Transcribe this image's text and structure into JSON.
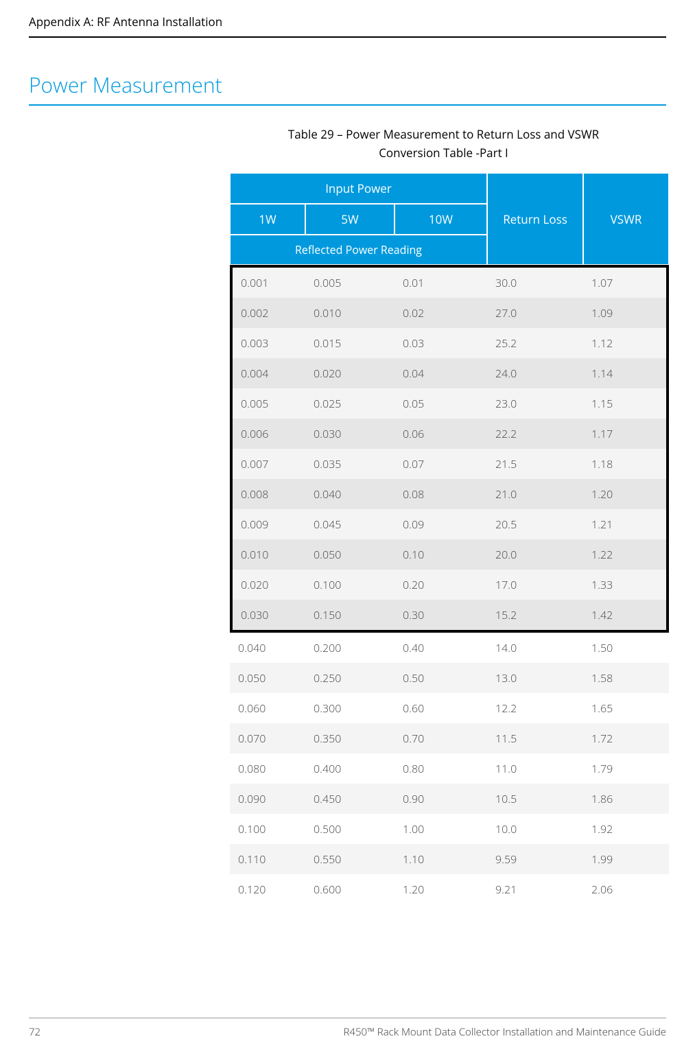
{
  "header": {
    "appendix": "Appendix A: RF Antenna Installation"
  },
  "section": {
    "title": "Power Measurement"
  },
  "table": {
    "caption_line1": "Table 29  –  Power Measurement to Return Loss and VSWR",
    "caption_line2": "Conversion Table -Part I",
    "header_input_power": "Input Power",
    "header_1w": "1W",
    "header_5w": "5W",
    "header_10w": "10W",
    "header_reflected": "Reflected Power Reading",
    "header_return_loss": "Return Loss",
    "header_vswr": "VSWR",
    "columns": [
      "1W",
      "5W",
      "10W",
      "Return Loss",
      "VSWR"
    ],
    "highlighted_rows": 12,
    "rows": [
      [
        "0.001",
        "0.005",
        "0.01",
        "30.0",
        "1.07"
      ],
      [
        "0.002",
        "0.010",
        "0.02",
        "27.0",
        "1.09"
      ],
      [
        "0.003",
        "0.015",
        "0.03",
        "25.2",
        "1.12"
      ],
      [
        "0.004",
        "0.020",
        "0.04",
        "24.0",
        "1.14"
      ],
      [
        "0.005",
        "0.025",
        "0.05",
        "23.0",
        "1.15"
      ],
      [
        "0.006",
        "0.030",
        "0.06",
        "22.2",
        "1.17"
      ],
      [
        "0.007",
        "0.035",
        "0.07",
        "21.5",
        "1.18"
      ],
      [
        "0.008",
        "0.040",
        "0.08",
        "21.0",
        "1.20"
      ],
      [
        "0.009",
        "0.045",
        "0.09",
        "20.5",
        "1.21"
      ],
      [
        "0.010",
        "0.050",
        "0.10",
        "20.0",
        "1.22"
      ],
      [
        "0.020",
        "0.100",
        "0.20",
        "17.0",
        "1.33"
      ],
      [
        "0.030",
        "0.150",
        "0.30",
        "15.2",
        "1.42"
      ],
      [
        "0.040",
        "0.200",
        "0.40",
        "14.0",
        "1.50"
      ],
      [
        "0.050",
        "0.250",
        "0.50",
        "13.0",
        "1.58"
      ],
      [
        "0.060",
        "0.300",
        "0.60",
        "12.2",
        "1.65"
      ],
      [
        "0.070",
        "0.350",
        "0.70",
        "11.5",
        "1.72"
      ],
      [
        "0.080",
        "0.400",
        "0.80",
        "11.0",
        "1.79"
      ],
      [
        "0.090",
        "0.450",
        "0.90",
        "10.5",
        "1.86"
      ],
      [
        "0.100",
        "0.500",
        "1.00",
        "10.0",
        "1.92"
      ],
      [
        "0.110",
        "0.550",
        "1.10",
        "9.59",
        "1.99"
      ],
      [
        "0.120",
        "0.600",
        "1.20",
        "9.21",
        "2.06"
      ]
    ]
  },
  "footer": {
    "page_number": "72",
    "doc_title": "R450™ Rack Mount Data Collector Installation and Maintenance Guide"
  },
  "styling": {
    "accent_color": "#0099dd",
    "row_odd_bg": "#f4f4f4",
    "row_even_bg": "#ffffff",
    "row_dark_bg": "#e6e6e6",
    "highlight_border": "#000000",
    "text_color": "#333333",
    "body_fontsize": 16,
    "caption_fontsize": 17,
    "section_title_fontsize": 30
  }
}
